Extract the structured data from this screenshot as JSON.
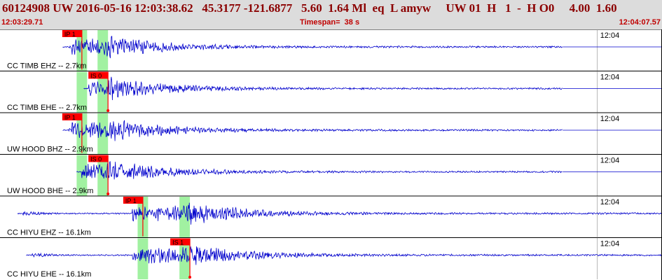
{
  "header": {
    "title": "60124908 UW 2016-05-16 12:03:38.62   45.3177 -121.6877   5.60  1.64 Ml  eq  L amyw     UW 01  H   1  -  H O0     4.00  1.60",
    "start_time": "12:03:29.71",
    "timespan": "Timespan=  38 s",
    "end_time": "12:04:07.57"
  },
  "colors": {
    "trace": "#0000cc",
    "pick": "#ff0000",
    "window": "#90ee90",
    "border": "#000000",
    "header_bg": "#dcdcdc",
    "header_text": "#8b0000"
  },
  "minute_label": "12:04",
  "traces": [
    {
      "label": "CC TIMB EHZ -- 2.7km",
      "pick": "IP 1",
      "pick_type": "P",
      "onset": 4.7,
      "p_window": 4.7,
      "s_window": 5.9,
      "start": 3.6,
      "end": 32.3,
      "amp": 1.0
    },
    {
      "label": "CC TIMB EHE -- 2.7km",
      "pick": "IS 0",
      "pick_type": "S",
      "onset": 6.2,
      "p_window": 4.7,
      "s_window": 5.9,
      "start": 4.8,
      "end": 32.3,
      "amp": 1.0
    },
    {
      "label": "UW HOOD BHZ -- 2.9km",
      "pick": "IP 1",
      "pick_type": "P",
      "onset": 4.7,
      "p_window": 4.7,
      "s_window": 5.9,
      "start": 3.6,
      "end": 32.3,
      "amp": 1.0
    },
    {
      "label": "UW HOOD BHE -- 2.9km",
      "pick": "IS 0",
      "pick_type": "S",
      "onset": 6.2,
      "p_window": 4.7,
      "s_window": 5.9,
      "start": 4.4,
      "end": 32.3,
      "amp": 1.0
    },
    {
      "label": "CC HIYU EHZ -- 16.1km",
      "pick": "IP 1",
      "pick_type": "P",
      "onset": 8.2,
      "p_window": 8.2,
      "s_window": 10.6,
      "start": 1.0,
      "end": 38.0,
      "amp": 1.0
    },
    {
      "label": "CC HIYU EHE -- 16.1km",
      "pick": "IS 1",
      "pick_type": "S",
      "onset": 10.9,
      "p_window": 8.2,
      "s_window": 10.6,
      "start": 1.5,
      "end": 38.0,
      "amp": 1.0
    }
  ]
}
